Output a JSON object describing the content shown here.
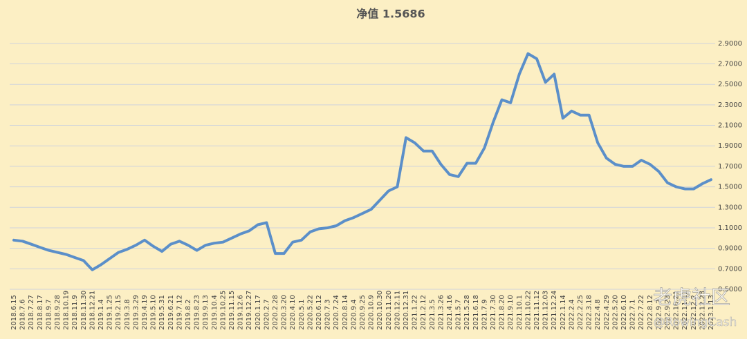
{
  "chart_data": {
    "type": "line",
    "title": "净值 1.5686",
    "categories": [
      "2018.6.15",
      "2018.7.6",
      "2018.7.27",
      "2018.8.17",
      "2018.9.7",
      "2018.9.28",
      "2018.10.19",
      "2018.11.9",
      "2018.11.30",
      "2018.12.21",
      "2019.1.4",
      "2019.1.25",
      "2019.2.15",
      "2019.3.8",
      "2019.3.29",
      "2019.4.19",
      "2019.5.10",
      "2019.5.31",
      "2019.6.21",
      "2019.7.12",
      "2019.8.2",
      "2019.8.23",
      "2019.9.13",
      "2019.10.4",
      "2019.10.25",
      "2019.11.15",
      "2019.12.6",
      "2019.12.27",
      "2020.1.17",
      "2020.2.7",
      "2020.2.28",
      "2020.3.20",
      "2020.4.10",
      "2020.5.1",
      "2020.5.22",
      "2020.6.12",
      "2020.7.3",
      "2020.7.24",
      "2020.8.14",
      "2020.9.4",
      "2020.9.25",
      "2020.10.9",
      "2020.10.30",
      "2020.11.20",
      "2020.12.11",
      "2020.12.31",
      "2021.1.22",
      "2021.2.12",
      "2021.3.5",
      "2021.3.26",
      "2021.4.16",
      "2021.5.7",
      "2021.5.28",
      "2021.6.18",
      "2021.7.9",
      "2021.7.30",
      "2021.8.20",
      "2021.9.10",
      "2021.10.1",
      "2021.10.22",
      "2021.11.12",
      "2021.12.03",
      "2021.12.24",
      "2022.1.14",
      "2022.2.4",
      "2022.2.25",
      "2022.3.18",
      "2022.4.8",
      "2022.4.29",
      "2022.5.20",
      "2022.6.10",
      "2022.7.1",
      "2022.7.22",
      "2022.8.12",
      "2022.9.2",
      "2022.9.23",
      "2022.10.21",
      "2022.11.11",
      "2022.12.2",
      "2022.12.23",
      "2023.1.13"
    ],
    "series": [
      {
        "color": "#5b8fc9",
        "values": [
          0.98,
          0.97,
          0.94,
          0.91,
          0.88,
          0.86,
          0.84,
          0.81,
          0.78,
          0.69,
          0.74,
          0.8,
          0.86,
          0.89,
          0.93,
          0.98,
          0.92,
          0.87,
          0.94,
          0.97,
          0.93,
          0.88,
          0.93,
          0.95,
          0.96,
          1.0,
          1.04,
          1.07,
          1.13,
          1.15,
          0.85,
          0.85,
          0.96,
          0.98,
          1.06,
          1.09,
          1.1,
          1.12,
          1.17,
          1.2,
          1.24,
          1.28,
          1.37,
          1.46,
          1.5,
          1.98,
          1.93,
          1.85,
          1.85,
          1.72,
          1.62,
          1.6,
          1.73,
          1.73,
          1.88,
          2.13,
          2.35,
          2.32,
          2.6,
          2.8,
          2.75,
          2.52,
          2.6,
          2.17,
          2.24,
          2.2,
          2.2,
          1.93,
          1.78,
          1.72,
          1.7,
          1.7,
          1.76,
          1.72,
          1.65,
          1.54,
          1.5,
          1.48,
          1.48,
          1.53,
          1.57
        ]
      }
    ],
    "ylim": [
      0.5,
      3.0
    ],
    "yticks": [
      {
        "value": 0.5,
        "label": "0.5000"
      },
      {
        "value": 0.7,
        "label": "0.7000"
      },
      {
        "value": 0.9,
        "label": "0.9000"
      },
      {
        "value": 1.1,
        "label": "1.1000"
      },
      {
        "value": 1.3,
        "label": "1.3000"
      },
      {
        "value": 1.5,
        "label": "1.5000"
      },
      {
        "value": 1.7,
        "label": "1.7000"
      },
      {
        "value": 1.9,
        "label": "1.9000"
      },
      {
        "value": 2.1,
        "label": "2.1000"
      },
      {
        "value": 2.3,
        "label": "2.3000"
      },
      {
        "value": 2.5,
        "label": "2.5000"
      },
      {
        "value": 2.7,
        "label": "2.7000"
      },
      {
        "value": 2.9,
        "label": "2.9000"
      }
    ],
    "grid": true,
    "annotations": [
      "老虎社区",
      "@RowingCash"
    ]
  }
}
